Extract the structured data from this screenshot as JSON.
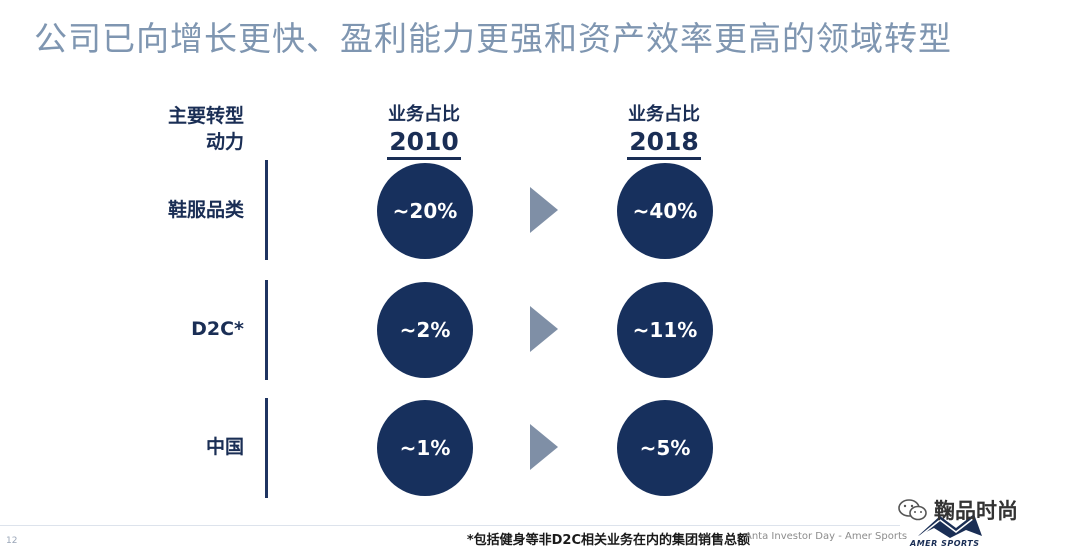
{
  "title": "公司已向增长更快、盈利能力更强和资产效率更高的领域转型",
  "header": {
    "driver_label_1": "主要转型",
    "driver_label_2": "动力",
    "col_2010_sub": "业务占比",
    "col_2010_year": "2010",
    "col_2018_sub": "业务占比",
    "col_2018_year": "2018"
  },
  "rows": [
    {
      "label": "鞋服品类",
      "v2010": "~20%",
      "v2018": "~40%"
    },
    {
      "label": "D2C*",
      "v2010": "~2%",
      "v2018": "~11%"
    },
    {
      "label": "中国",
      "v2010": "~1%",
      "v2018": "~5%"
    }
  ],
  "footnote": "*包括健身等非D2C相关业务在内的集团销售总额",
  "event_text": "Anta Investor Day - Amer Sports",
  "page_number": "12",
  "logo_text": "AMER SPORTS",
  "watermark": "鞠品时尚",
  "colors": {
    "navy": "#17305d",
    "title": "#7f96b1",
    "arrow": "#7f8fa6"
  },
  "icons": [
    "arrow-right-icon",
    "amer-sports-logo-icon",
    "wechat-icon"
  ]
}
